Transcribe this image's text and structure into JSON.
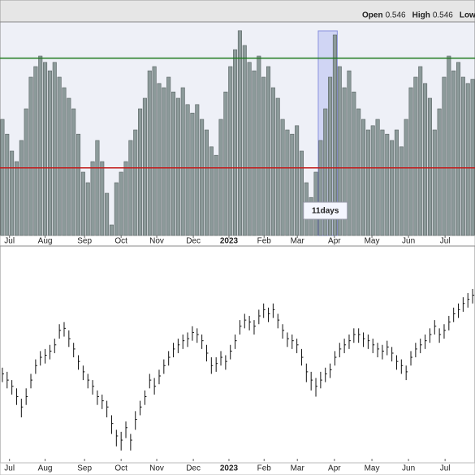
{
  "legend_items": [
    {
      "label": "Open",
      "value": 0.546
    },
    {
      "label": "High",
      "value": 0.546
    },
    {
      "label": "Low"
    }
  ],
  "chart_data": [
    {
      "type": "bar",
      "color": "#8c9a9a",
      "ylim": [
        0,
        100
      ],
      "xlim": [
        -0.5,
        99.5
      ],
      "reference_lines": [
        {
          "value": 84,
          "color": "#1f7a1f"
        },
        {
          "value": 32,
          "color": "#c41a1a"
        }
      ],
      "highlight": [
        66.5,
        70.5
      ],
      "annotation": {
        "text": "11days",
        "x": 68
      },
      "xticks": [
        {
          "value": 1.5,
          "label": "Jul"
        },
        {
          "value": 9,
          "label": "Aug"
        },
        {
          "value": 17.3,
          "label": "Sep"
        },
        {
          "value": 25,
          "label": "Oct"
        },
        {
          "value": 32.5,
          "label": "Nov"
        },
        {
          "value": 40.2,
          "label": "Dec"
        },
        {
          "value": 47.7,
          "label": "2023"
        },
        {
          "value": 55.1,
          "label": "Feb"
        },
        {
          "value": 62.1,
          "label": "Mar"
        },
        {
          "value": 69.9,
          "label": "Apr"
        },
        {
          "value": 77.8,
          "label": "May"
        },
        {
          "value": 85.5,
          "label": "Jun"
        },
        {
          "value": 93.2,
          "label": "Jul"
        }
      ],
      "values": [
        55,
        48,
        40,
        35,
        45,
        60,
        75,
        80,
        85,
        82,
        78,
        82,
        75,
        70,
        65,
        60,
        48,
        30,
        25,
        35,
        45,
        35,
        20,
        5,
        25,
        30,
        35,
        45,
        50,
        60,
        65,
        78,
        80,
        72,
        70,
        75,
        68,
        65,
        70,
        62,
        58,
        62,
        55,
        50,
        42,
        38,
        55,
        68,
        80,
        88,
        97,
        90,
        82,
        78,
        85,
        75,
        80,
        70,
        65,
        55,
        50,
        48,
        52,
        40,
        25,
        18,
        30,
        45,
        60,
        75,
        95,
        80,
        70,
        78,
        68,
        60,
        55,
        50,
        52,
        55,
        50,
        48,
        45,
        50,
        42,
        55,
        70,
        75,
        80,
        72,
        65,
        50,
        60,
        75,
        85,
        78,
        82,
        75,
        72,
        74
      ]
    },
    {
      "type": "ohlc",
      "color": "#111111",
      "ylim": [
        0,
        100
      ],
      "xlim": [
        -0.5,
        99.5
      ],
      "xticks": [
        {
          "value": 1.5,
          "label": "Jul"
        },
        {
          "value": 9,
          "label": "Aug"
        },
        {
          "value": 17.3,
          "label": "Sep"
        },
        {
          "value": 25,
          "label": "Oct"
        },
        {
          "value": 32.5,
          "label": "Nov"
        },
        {
          "value": 40.2,
          "label": "Dec"
        },
        {
          "value": 47.7,
          "label": "2023"
        },
        {
          "value": 55.1,
          "label": "Feb"
        },
        {
          "value": 62.1,
          "label": "Mar"
        },
        {
          "value": 69.9,
          "label": "Apr"
        },
        {
          "value": 77.8,
          "label": "May"
        },
        {
          "value": 85.5,
          "label": "Jun"
        },
        {
          "value": 93.2,
          "label": "Jul"
        }
      ],
      "high": [
        44,
        42,
        38,
        34,
        29,
        34,
        41,
        48,
        52,
        53,
        55,
        58,
        65,
        66,
        62,
        56,
        50,
        45,
        41,
        38,
        33,
        31,
        28,
        21,
        14,
        13,
        18,
        12,
        23,
        28,
        33,
        41,
        39,
        43,
        48,
        52,
        56,
        58,
        60,
        61,
        64,
        63,
        60,
        55,
        49,
        49,
        52,
        50,
        55,
        60,
        67,
        70,
        69,
        67,
        72,
        75,
        73,
        75,
        70,
        65,
        61,
        60,
        58,
        53,
        46,
        42,
        39,
        42,
        44,
        46,
        52,
        56,
        58,
        60,
        63,
        63,
        61,
        60,
        58,
        56,
        55,
        57,
        54,
        50,
        48,
        45,
        52,
        56,
        58,
        60,
        63,
        67,
        63,
        65,
        69,
        73,
        75,
        78,
        80,
        82
      ],
      "low": [
        37,
        34,
        31,
        26,
        20,
        26,
        34,
        41,
        45,
        46,
        48,
        51,
        58,
        59,
        54,
        49,
        43,
        38,
        34,
        31,
        26,
        24,
        20,
        12,
        6,
        4,
        10,
        4,
        14,
        21,
        26,
        34,
        31,
        36,
        41,
        45,
        49,
        51,
        53,
        54,
        57,
        56,
        53,
        47,
        41,
        42,
        45,
        43,
        48,
        53,
        60,
        63,
        62,
        60,
        65,
        68,
        66,
        68,
        63,
        58,
        54,
        53,
        51,
        45,
        37,
        33,
        30,
        34,
        37,
        39,
        45,
        49,
        51,
        53,
        56,
        56,
        54,
        53,
        51,
        49,
        48,
        50,
        47,
        43,
        41,
        38,
        45,
        49,
        51,
        53,
        56,
        60,
        56,
        58,
        62,
        66,
        68,
        71,
        73,
        75
      ],
      "close": [
        41,
        38,
        35,
        30,
        25,
        30,
        38,
        45,
        49,
        50,
        52,
        55,
        62,
        63,
        58,
        53,
        47,
        42,
        38,
        35,
        30,
        28,
        25,
        17,
        11,
        9,
        15,
        9,
        19,
        25,
        30,
        38,
        35,
        40,
        45,
        49,
        53,
        55,
        57,
        58,
        61,
        60,
        57,
        51,
        45,
        46,
        49,
        47,
        52,
        57,
        64,
        67,
        66,
        64,
        69,
        72,
        70,
        72,
        67,
        62,
        58,
        57,
        55,
        49,
        42,
        38,
        35,
        38,
        41,
        43,
        49,
        53,
        55,
        57,
        60,
        60,
        58,
        57,
        55,
        53,
        52,
        54,
        51,
        47,
        45,
        42,
        49,
        53,
        55,
        57,
        60,
        64,
        60,
        62,
        66,
        70,
        72,
        75,
        77,
        79
      ]
    }
  ]
}
